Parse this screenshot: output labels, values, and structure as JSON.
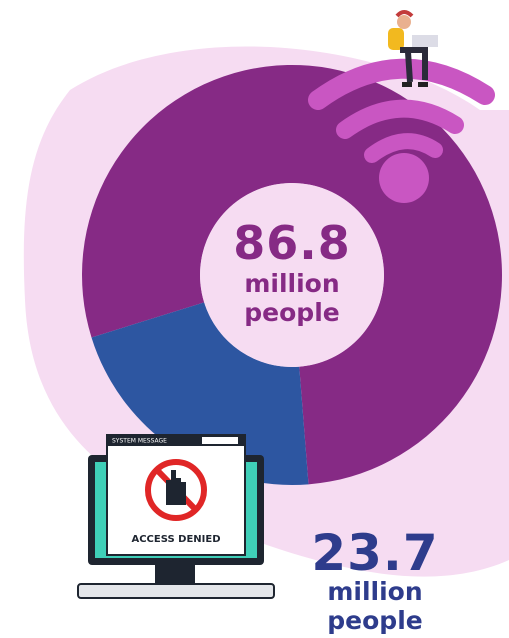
{
  "chart_data": {
    "type": "donut",
    "values": [
      86.8,
      23.7
    ],
    "colors": [
      "#862a85",
      "#2d56a1"
    ],
    "unit": "million people",
    "window_title": "SYSTEM MESSAGE",
    "message": "ACCESS DENIED"
  }
}
